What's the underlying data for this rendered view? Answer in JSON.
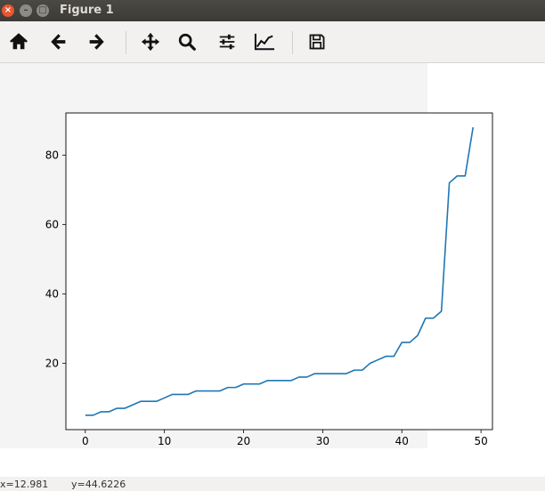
{
  "window": {
    "title": "Figure 1",
    "close_glyph": "×",
    "min_glyph": "–",
    "max_glyph": "□"
  },
  "toolbar": {
    "buttons": [
      {
        "name": "home-icon",
        "tooltip": "Reset original view"
      },
      {
        "name": "back-arrow-icon",
        "tooltip": "Back"
      },
      {
        "name": "forward-arrow-icon",
        "tooltip": "Forward"
      },
      {
        "name": "pan-icon",
        "tooltip": "Pan"
      },
      {
        "name": "zoom-icon",
        "tooltip": "Zoom"
      },
      {
        "name": "subplots-icon",
        "tooltip": "Configure subplots"
      },
      {
        "name": "edit-curves-icon",
        "tooltip": "Edit curve parameters"
      },
      {
        "name": "save-icon",
        "tooltip": "Save the figure"
      }
    ]
  },
  "status": {
    "x": "x=12.981",
    "y": "y=44.6226"
  },
  "colors": {
    "line": "#1f77b4",
    "axes": "#000000"
  },
  "chart_data": {
    "type": "line",
    "title": "",
    "xlabel": "",
    "ylabel": "",
    "xlim": [
      -2.45,
      51.45
    ],
    "ylim": [
      0.85,
      92.15
    ],
    "xticks": [
      0,
      10,
      20,
      30,
      40,
      50
    ],
    "yticks": [
      20,
      40,
      60,
      80
    ],
    "grid": false,
    "x": [
      0,
      1,
      2,
      3,
      4,
      5,
      6,
      7,
      8,
      9,
      10,
      11,
      12,
      13,
      14,
      15,
      16,
      17,
      18,
      19,
      20,
      21,
      22,
      23,
      24,
      25,
      26,
      27,
      28,
      29,
      30,
      31,
      32,
      33,
      34,
      35,
      36,
      37,
      38,
      39,
      40,
      41,
      42,
      43,
      44,
      45,
      46,
      47,
      48,
      49
    ],
    "series": [
      {
        "values": [
          5,
          5,
          6,
          6,
          7,
          7,
          8,
          9,
          9,
          9,
          10,
          11,
          11,
          11,
          12,
          12,
          12,
          12,
          13,
          13,
          14,
          14,
          14,
          15,
          15,
          15,
          15,
          16,
          16,
          17,
          17,
          17,
          17,
          17,
          18,
          18,
          20,
          21,
          22,
          22,
          26,
          26,
          28,
          33,
          33,
          35,
          72,
          74,
          74,
          88
        ]
      }
    ]
  }
}
